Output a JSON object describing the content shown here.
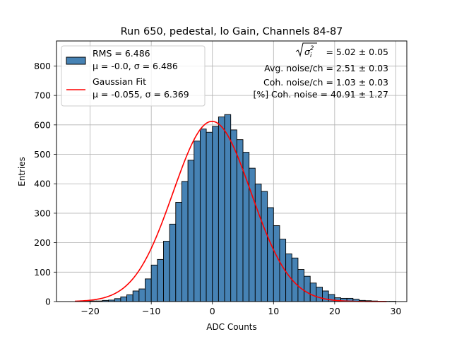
{
  "chart_data": {
    "type": "bar",
    "title": "Run 650, pedestal, lo Gain, Channels 84-87",
    "xlabel": "ADC Counts",
    "ylabel": "Entries",
    "xlim": [
      -25.5,
      31.8
    ],
    "ylim": [
      0,
      885
    ],
    "xticks": [
      -20,
      -10,
      0,
      10,
      20,
      30
    ],
    "yticks": [
      0,
      100,
      200,
      300,
      400,
      500,
      600,
      700,
      800
    ],
    "grid": true,
    "legend_position": "top-left",
    "histogram": {
      "name": "RMS = 6.486",
      "name_line2": "μ = -0.0, σ = 6.486",
      "color": "#4682b4",
      "edgecolor": "#000000",
      "bin_width": 1,
      "bin_start": -22,
      "counts": [
        1,
        1,
        2,
        2,
        4,
        5,
        10,
        16,
        23,
        36,
        43,
        77,
        124,
        143,
        205,
        263,
        337,
        408,
        480,
        545,
        586,
        575,
        595,
        627,
        635,
        583,
        550,
        507,
        453,
        399,
        374,
        319,
        258,
        212,
        162,
        148,
        109,
        86,
        63,
        49,
        36,
        24,
        13,
        11,
        11,
        8,
        4,
        3,
        2,
        1,
        1,
        1
      ]
    },
    "fit": {
      "name": "Gaussian Fit",
      "name_line2": "μ = -0.055, σ = 6.369",
      "color": "#ff0000",
      "mu": -0.055,
      "sigma": 6.369,
      "amplitude": 612,
      "x_range": [
        -22.5,
        28.5
      ]
    },
    "annotations": [
      "= 5.02 ± 0.05",
      "Avg. noise/ch = 2.51 ± 0.03",
      "Coh. noise/ch = 1.03 ± 0.03",
      "[%] Coh. noise = 40.91 ± 1.27"
    ]
  }
}
